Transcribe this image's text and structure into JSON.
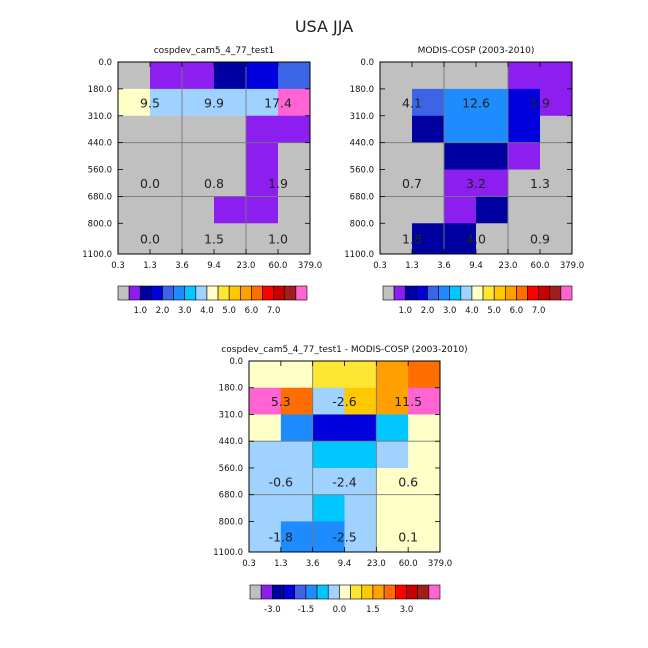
{
  "figure_title": "USA JJA",
  "chart_data": [
    {
      "type": "heatmap",
      "title": "cospdev_cam5_4_77_test1",
      "x_tick_labels": [
        "0.3",
        "1.3",
        "3.6",
        "9.4",
        "23.0",
        "60.0",
        "379.0"
      ],
      "y_tick_labels": [
        "0.0",
        "180.0",
        "310.0",
        "440.0",
        "560.0",
        "680.0",
        "800.0",
        "1100.0"
      ],
      "cell_colors": [
        [
          "#C0C0C0",
          "#8C1EF0",
          "#8C1EF0",
          "#0000A0",
          "#0000DC",
          "#3C64E6"
        ],
        [
          "#FFFFC8",
          "#A0D2FF",
          "#A0D2FF",
          "#A0D2FF",
          "#A0D2FF",
          "#FF64D2"
        ],
        [
          "#C0C0C0",
          "#C0C0C0",
          "#C0C0C0",
          "#C0C0C0",
          "#8C1EF0",
          "#8C1EF0"
        ],
        [
          "#C0C0C0",
          "#C0C0C0",
          "#C0C0C0",
          "#C0C0C0",
          "#8C1EF0",
          "#C0C0C0"
        ],
        [
          "#C0C0C0",
          "#C0C0C0",
          "#C0C0C0",
          "#C0C0C0",
          "#8C1EF0",
          "#C0C0C0"
        ],
        [
          "#C0C0C0",
          "#C0C0C0",
          "#C0C0C0",
          "#8C1EF0",
          "#8C1EF0",
          "#C0C0C0"
        ],
        [
          "#C0C0C0",
          "#C0C0C0",
          "#C0C0C0",
          "#C0C0C0",
          "#C0C0C0",
          "#C0C0C0"
        ]
      ],
      "annotations": [
        {
          "text": "9.5",
          "row": 1,
          "col": 0.5
        },
        {
          "text": "9.9",
          "row": 1,
          "col": 2.5
        },
        {
          "text": "17.4",
          "row": 1,
          "col": 4.5
        },
        {
          "text": "0.0",
          "row": 4,
          "col": 0.5
        },
        {
          "text": "0.8",
          "row": 4,
          "col": 2.5
        },
        {
          "text": "1.9",
          "row": 4,
          "col": 4.5
        },
        {
          "text": "0.0",
          "row": 6,
          "col": 0.5
        },
        {
          "text": "1.5",
          "row": 6,
          "col": 2.5
        },
        {
          "text": "1.0",
          "row": 6,
          "col": 4.5
        }
      ],
      "colorbar": {
        "colors": [
          "#C0C0C0",
          "#8C1EF0",
          "#0000A0",
          "#0000DC",
          "#3C64E6",
          "#1E8CFF",
          "#00C8FF",
          "#A0D2FF",
          "#FFFFC8",
          "#FFE632",
          "#FFC800",
          "#FFA000",
          "#FF6E00",
          "#FF0000",
          "#C80000",
          "#A01E1E",
          "#FF64D2"
        ],
        "labels": [
          "1.0",
          "2.0",
          "3.0",
          "4.0",
          "5.0",
          "6.0",
          "7.0"
        ],
        "label_boundaries": [
          2,
          4,
          6,
          8,
          10,
          12,
          14
        ]
      }
    },
    {
      "type": "heatmap",
      "title": "MODIS-COSP (2003-2010)",
      "x_tick_labels": [
        "0.3",
        "1.3",
        "3.6",
        "9.4",
        "23.0",
        "60.0",
        "379.0"
      ],
      "y_tick_labels": [
        "0.0",
        "180.0",
        "310.0",
        "440.0",
        "560.0",
        "680.0",
        "800.0",
        "1100.0"
      ],
      "cell_colors": [
        [
          "#C0C0C0",
          "#C0C0C0",
          "#C0C0C0",
          "#C0C0C0",
          "#8C1EF0",
          "#8C1EF0"
        ],
        [
          "#C0C0C0",
          "#3C64E6",
          "#1E8CFF",
          "#1E8CFF",
          "#0000DC",
          "#8C1EF0"
        ],
        [
          "#C0C0C0",
          "#0000A0",
          "#1E8CFF",
          "#1E8CFF",
          "#0000DC",
          "#C0C0C0"
        ],
        [
          "#C0C0C0",
          "#C0C0C0",
          "#0000A0",
          "#0000A0",
          "#8C1EF0",
          "#C0C0C0"
        ],
        [
          "#C0C0C0",
          "#C0C0C0",
          "#8C1EF0",
          "#8C1EF0",
          "#C0C0C0",
          "#C0C0C0"
        ],
        [
          "#C0C0C0",
          "#C0C0C0",
          "#8C1EF0",
          "#0000A0",
          "#C0C0C0",
          "#C0C0C0"
        ],
        [
          "#C0C0C0",
          "#0000A0",
          "#0000A0",
          "#C0C0C0",
          "#C0C0C0",
          "#C0C0C0"
        ]
      ],
      "annotations": [
        {
          "text": "4.1",
          "row": 1,
          "col": 0.5
        },
        {
          "text": "12.6",
          "row": 1,
          "col": 2.5
        },
        {
          "text": "5.9",
          "row": 1,
          "col": 4.5
        },
        {
          "text": "0.7",
          "row": 4,
          "col": 0.5
        },
        {
          "text": "3.2",
          "row": 4,
          "col": 2.5
        },
        {
          "text": "1.3",
          "row": 4,
          "col": 4.5
        },
        {
          "text": "1.8",
          "row": 6,
          "col": 0.5
        },
        {
          "text": "4.0",
          "row": 6,
          "col": 2.5
        },
        {
          "text": "0.9",
          "row": 6,
          "col": 4.5
        }
      ],
      "colorbar": {
        "colors": [
          "#C0C0C0",
          "#8C1EF0",
          "#0000A0",
          "#0000DC",
          "#3C64E6",
          "#1E8CFF",
          "#00C8FF",
          "#A0D2FF",
          "#FFFFC8",
          "#FFE632",
          "#FFC800",
          "#FFA000",
          "#FF6E00",
          "#FF0000",
          "#C80000",
          "#A01E1E",
          "#FF64D2"
        ],
        "labels": [
          "1.0",
          "2.0",
          "3.0",
          "4.0",
          "5.0",
          "6.0",
          "7.0"
        ],
        "label_boundaries": [
          2,
          4,
          6,
          8,
          10,
          12,
          14
        ]
      }
    },
    {
      "type": "heatmap",
      "title": "cospdev_cam5_4_77_test1 - MODIS-COSP (2003-2010)",
      "x_tick_labels": [
        "0.3",
        "1.3",
        "3.6",
        "9.4",
        "23.0",
        "60.0",
        "379.0"
      ],
      "y_tick_labels": [
        "0.0",
        "180.0",
        "310.0",
        "440.0",
        "560.0",
        "680.0",
        "800.0",
        "1100.0"
      ],
      "cell_colors": [
        [
          "#FFFFC8",
          "#FFFFC8",
          "#FFE632",
          "#FFE632",
          "#FFA000",
          "#FF6E00"
        ],
        [
          "#FF64D2",
          "#FF6E00",
          "#A0D2FF",
          "#FFC800",
          "#FFA000",
          "#FF64D2"
        ],
        [
          "#FFFFC8",
          "#1E8CFF",
          "#0000DC",
          "#0000DC",
          "#00C8FF",
          "#FFFFC8"
        ],
        [
          "#A0D2FF",
          "#A0D2FF",
          "#00C8FF",
          "#00C8FF",
          "#A0D2FF",
          "#FFFFC8"
        ],
        [
          "#A0D2FF",
          "#A0D2FF",
          "#A0D2FF",
          "#A0D2FF",
          "#FFFFC8",
          "#FFFFC8"
        ],
        [
          "#A0D2FF",
          "#A0D2FF",
          "#00C8FF",
          "#A0D2FF",
          "#FFFFC8",
          "#FFFFC8"
        ],
        [
          "#A0D2FF",
          "#1E8CFF",
          "#1E8CFF",
          "#A0D2FF",
          "#FFFFC8",
          "#FFFFC8"
        ]
      ],
      "annotations": [
        {
          "text": "5.3",
          "row": 1,
          "col": 0.5
        },
        {
          "text": "-2.6",
          "row": 1,
          "col": 2.5
        },
        {
          "text": "11.5",
          "row": 1,
          "col": 4.5
        },
        {
          "text": "-0.6",
          "row": 4,
          "col": 0.5
        },
        {
          "text": "-2.4",
          "row": 4,
          "col": 2.5
        },
        {
          "text": "0.6",
          "row": 4,
          "col": 4.5
        },
        {
          "text": "-1.8",
          "row": 6,
          "col": 0.5
        },
        {
          "text": "-2.5",
          "row": 6,
          "col": 2.5
        },
        {
          "text": "0.1",
          "row": 6,
          "col": 4.5
        }
      ],
      "colorbar": {
        "colors": [
          "#C0C0C0",
          "#8C1EF0",
          "#0000A0",
          "#0000DC",
          "#3C64E6",
          "#1E8CFF",
          "#00C8FF",
          "#A0D2FF",
          "#FFFFC8",
          "#FFE632",
          "#FFC800",
          "#FFA000",
          "#FF6E00",
          "#FF0000",
          "#C80000",
          "#A01E1E",
          "#FF64D2"
        ],
        "labels": [
          "-3.0",
          "-1.5",
          "0.0",
          "1.5",
          "3.0"
        ],
        "label_boundaries": [
          2,
          5,
          8,
          11,
          14
        ]
      }
    }
  ]
}
